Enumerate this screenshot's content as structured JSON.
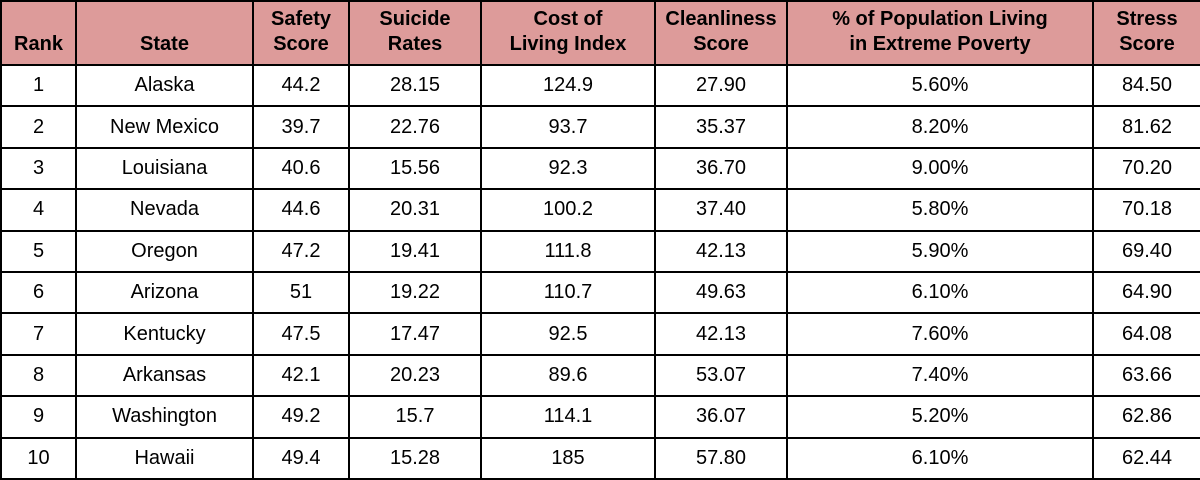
{
  "style": {
    "header_bg": "#dd9b9a",
    "border_color": "#000000",
    "text_color": "#000000"
  },
  "chart_data": {
    "type": "table",
    "title": "",
    "columns": [
      "Rank",
      "State",
      "Safety\nScore",
      "Suicide\nRates",
      "Cost of\nLiving Index",
      "Cleanliness\nScore",
      "% of Population Living\nin Extreme Poverty",
      "Stress\nScore"
    ],
    "rows": [
      [
        "1",
        "Alaska",
        "44.2",
        "28.15",
        "124.9",
        "27.90",
        "5.60%",
        "84.50"
      ],
      [
        "2",
        "New Mexico",
        "39.7",
        "22.76",
        "93.7",
        "35.37",
        "8.20%",
        "81.62"
      ],
      [
        "3",
        "Louisiana",
        "40.6",
        "15.56",
        "92.3",
        "36.70",
        "9.00%",
        "70.20"
      ],
      [
        "4",
        "Nevada",
        "44.6",
        "20.31",
        "100.2",
        "37.40",
        "5.80%",
        "70.18"
      ],
      [
        "5",
        "Oregon",
        "47.2",
        "19.41",
        "111.8",
        "42.13",
        "5.90%",
        "69.40"
      ],
      [
        "6",
        "Arizona",
        "51",
        "19.22",
        "110.7",
        "49.63",
        "6.10%",
        "64.90"
      ],
      [
        "7",
        "Kentucky",
        "47.5",
        "17.47",
        "92.5",
        "42.13",
        "7.60%",
        "64.08"
      ],
      [
        "8",
        "Arkansas",
        "42.1",
        "20.23",
        "89.6",
        "53.07",
        "7.40%",
        "63.66"
      ],
      [
        "9",
        "Washington",
        "49.2",
        "15.7",
        "114.1",
        "36.07",
        "5.20%",
        "62.86"
      ],
      [
        "10",
        "Hawaii",
        "49.4",
        "15.28",
        "185",
        "57.80",
        "6.10%",
        "62.44"
      ]
    ]
  }
}
